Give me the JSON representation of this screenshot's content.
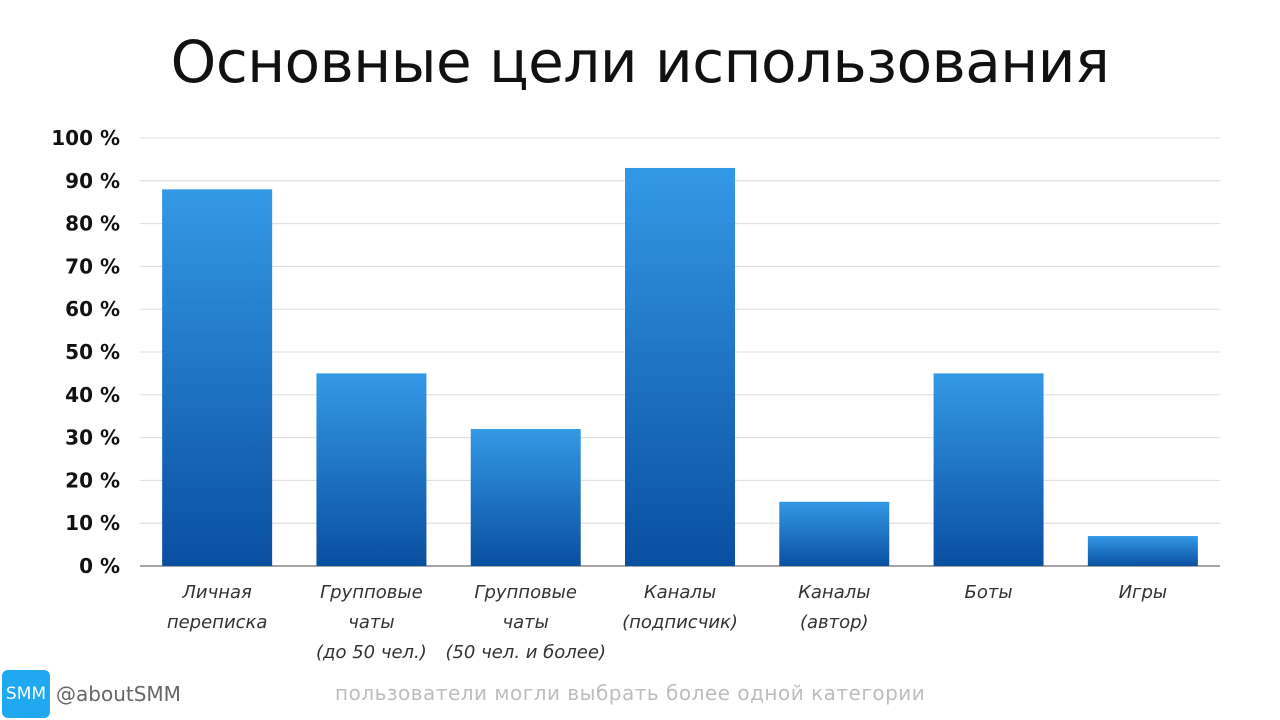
{
  "chart_data": {
    "type": "bar",
    "title": "Основные цели использования",
    "categories": [
      [
        "Личная",
        "переписка"
      ],
      [
        "Групповые",
        "чаты",
        "(до 50 чел.)"
      ],
      [
        "Групповые",
        "чаты",
        "(50 чел. и более)"
      ],
      [
        "Каналы",
        "(подписчик)"
      ],
      [
        "Каналы",
        "(автор)"
      ],
      [
        "Боты"
      ],
      [
        "Игры"
      ]
    ],
    "values": [
      88,
      45,
      32,
      93,
      15,
      45,
      7
    ],
    "ylim": [
      0,
      100
    ],
    "yticks": [
      "0 %",
      "10 %",
      "20 %",
      "30 %",
      "40 %",
      "50 %",
      "60 %",
      "70 %",
      "80 %",
      "90 %",
      "100 %"
    ],
    "grid": true,
    "bar_color_top": "#3399e6",
    "bar_color_bottom": "#0a4fa0"
  },
  "footer": {
    "logo_text": "SMM",
    "handle": "@aboutSMM",
    "note": "пользователи могли выбрать более одной категории"
  }
}
